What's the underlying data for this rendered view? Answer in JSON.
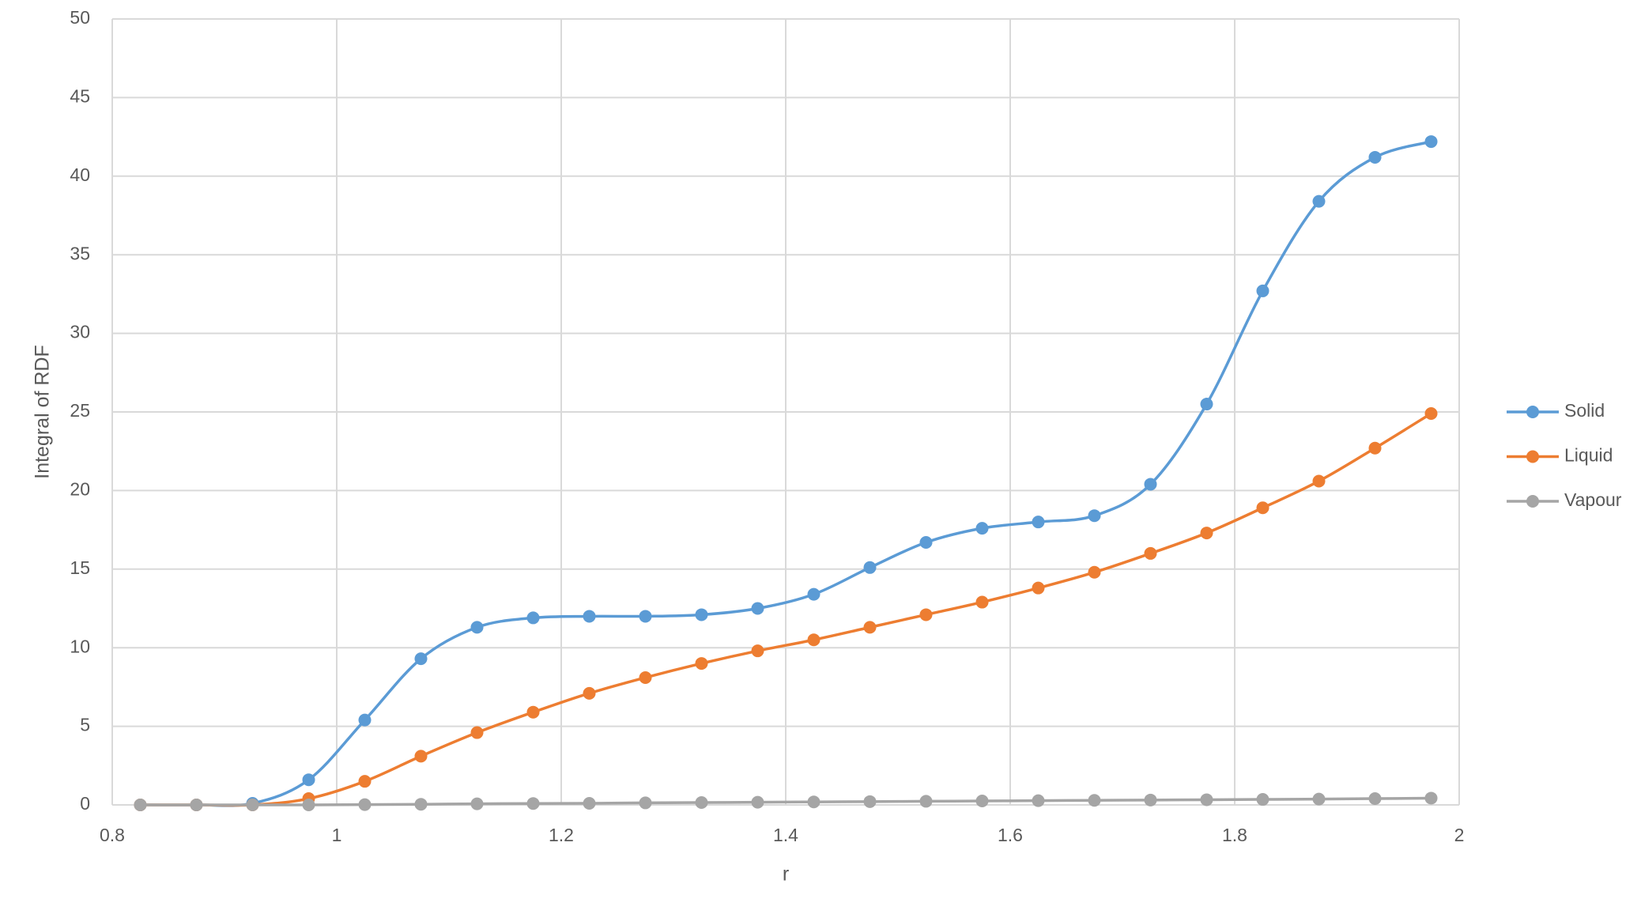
{
  "chart_data": {
    "type": "line",
    "x_label": "r",
    "y_label": "Integral of RDF",
    "x": [
      0.825,
      0.875,
      0.925,
      0.975,
      1.025,
      1.075,
      1.125,
      1.175,
      1.225,
      1.275,
      1.325,
      1.375,
      1.425,
      1.475,
      1.525,
      1.575,
      1.625,
      1.675,
      1.725,
      1.775,
      1.825,
      1.875,
      1.925,
      1.975
    ],
    "series": [
      {
        "name": "Solid",
        "color": "#5b9bd5",
        "values": [
          0,
          0,
          0.1,
          1.6,
          5.4,
          9.3,
          11.3,
          11.9,
          12.0,
          12.0,
          12.1,
          12.5,
          13.4,
          15.1,
          16.7,
          17.6,
          18.0,
          18.4,
          20.4,
          25.5,
          32.7,
          38.4,
          41.2,
          42.2
        ]
      },
      {
        "name": "Liquid",
        "color": "#ed7d31",
        "values": [
          0,
          0,
          0,
          0.4,
          1.5,
          3.1,
          4.6,
          5.9,
          7.1,
          8.1,
          9.0,
          9.8,
          10.5,
          11.3,
          12.1,
          12.9,
          13.8,
          14.8,
          16.0,
          17.3,
          18.9,
          20.6,
          22.7,
          24.9
        ]
      },
      {
        "name": "Vapour",
        "color": "#a5a5a5",
        "values": [
          0,
          0,
          0,
          0,
          0.02,
          0.04,
          0.07,
          0.09,
          0.1,
          0.13,
          0.15,
          0.17,
          0.19,
          0.21,
          0.23,
          0.25,
          0.27,
          0.29,
          0.31,
          0.33,
          0.35,
          0.37,
          0.4,
          0.43
        ]
      }
    ],
    "xlim": [
      0.8,
      2
    ],
    "xticks": [
      0.8,
      1,
      1.2,
      1.4,
      1.6,
      1.8,
      2
    ],
    "ylim": [
      0,
      50
    ],
    "yticks": [
      0,
      5,
      10,
      15,
      20,
      25,
      30,
      35,
      40,
      45,
      50
    ],
    "grid": true,
    "legend": "right",
    "smooth": true
  }
}
